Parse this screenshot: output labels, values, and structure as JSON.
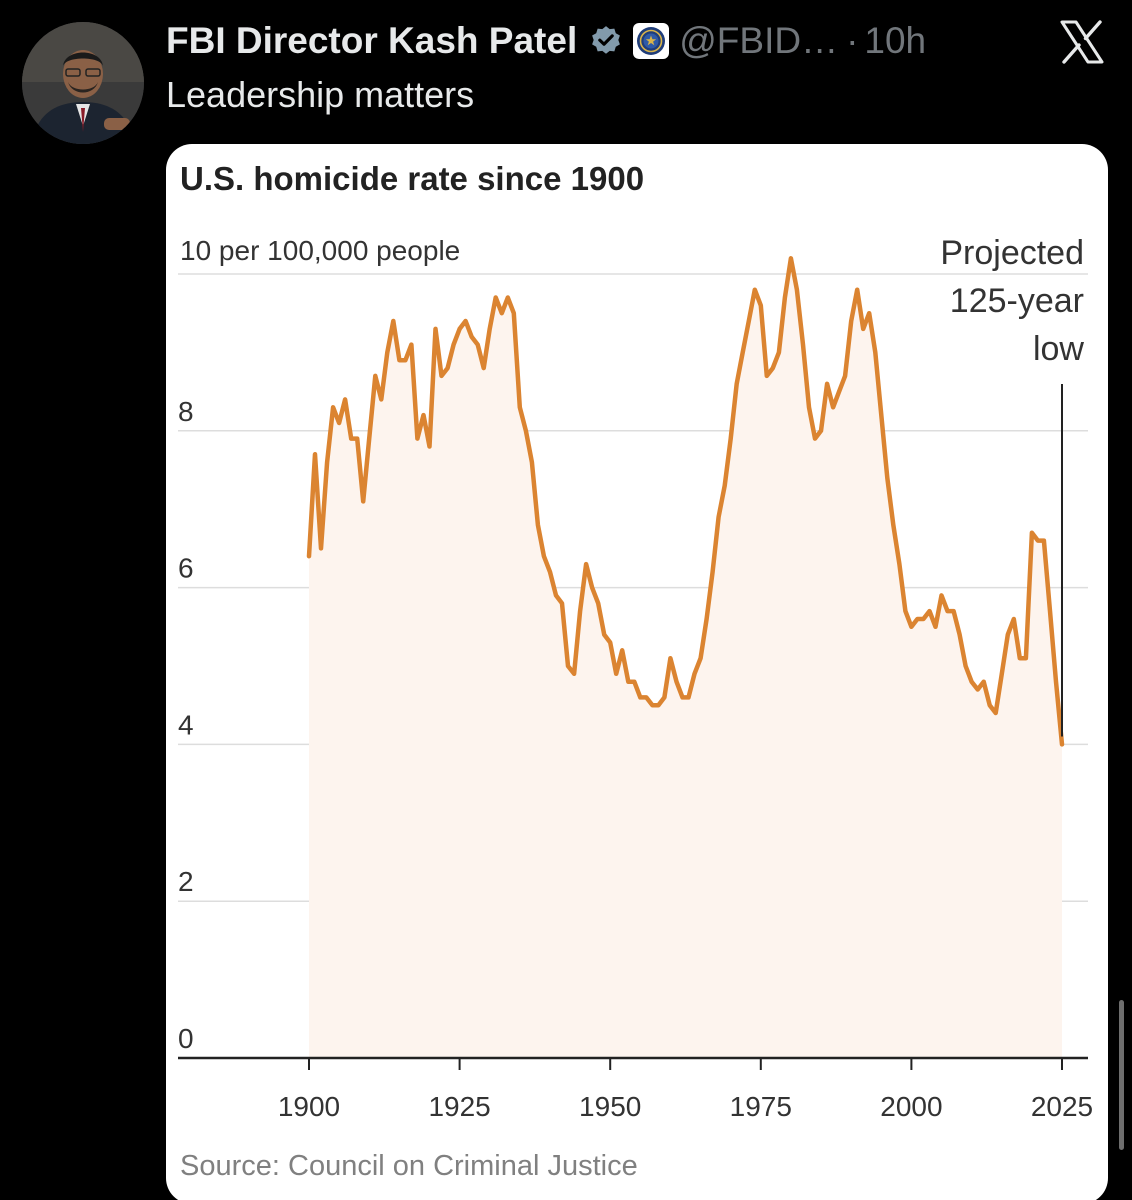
{
  "post": {
    "display_name": "FBI Director Kash Patel",
    "handle": "@FBID…",
    "separator": "·",
    "time": "10h",
    "text": "Leadership matters",
    "icons": {
      "avatar": "profile-photo",
      "verified": "verified-badge-icon",
      "affiliate": "fbi-seal-icon",
      "platform": "x-logo-icon"
    },
    "colors": {
      "background": "#000000",
      "verified_badge": "#829aab",
      "muted_text": "#71767b"
    }
  },
  "chart_data": {
    "type": "area",
    "title": "U.S. homicide rate since 1900",
    "unit_label": "10 per 100,000 people",
    "xlabel": "",
    "ylabel": "",
    "x_ticks": [
      "1900",
      "1925",
      "1950",
      "1975",
      "2000",
      "2025"
    ],
    "x_tick_values": [
      1900,
      1925,
      1950,
      1975,
      2000,
      2025
    ],
    "y_ticks": [
      "8",
      "6",
      "4",
      "2",
      "0"
    ],
    "y_tick_values": [
      8,
      6,
      4,
      2,
      0
    ],
    "xlim": [
      1900,
      2025
    ],
    "ylim": [
      0,
      10
    ],
    "grid": true,
    "annotation": [
      "Projected",
      "125-year",
      "low"
    ],
    "annotation_year": 2025,
    "source": "Source: Council on Criminal Justice",
    "colors": {
      "line": "#db8431",
      "fill": "#fdf4ee",
      "grid": "#dddddd",
      "axis": "#222222"
    },
    "series": [
      {
        "name": "",
        "x": [
          1900,
          1901,
          1902,
          1903,
          1904,
          1905,
          1906,
          1907,
          1908,
          1909,
          1910,
          1911,
          1912,
          1913,
          1914,
          1915,
          1916,
          1917,
          1918,
          1919,
          1920,
          1921,
          1922,
          1923,
          1924,
          1925,
          1926,
          1927,
          1928,
          1929,
          1930,
          1931,
          1932,
          1933,
          1934,
          1935,
          1936,
          1937,
          1938,
          1939,
          1940,
          1941,
          1942,
          1943,
          1944,
          1945,
          1946,
          1947,
          1948,
          1949,
          1950,
          1951,
          1952,
          1953,
          1954,
          1955,
          1956,
          1957,
          1958,
          1959,
          1960,
          1961,
          1962,
          1963,
          1964,
          1965,
          1966,
          1967,
          1968,
          1969,
          1970,
          1971,
          1972,
          1973,
          1974,
          1975,
          1976,
          1977,
          1978,
          1979,
          1980,
          1981,
          1982,
          1983,
          1984,
          1985,
          1986,
          1987,
          1988,
          1989,
          1990,
          1991,
          1992,
          1993,
          1994,
          1995,
          1996,
          1997,
          1998,
          1999,
          2000,
          2001,
          2002,
          2003,
          2004,
          2005,
          2006,
          2007,
          2008,
          2009,
          2010,
          2011,
          2012,
          2013,
          2014,
          2015,
          2016,
          2017,
          2018,
          2019,
          2020,
          2021,
          2022,
          2023,
          2024,
          2025
        ],
        "y": [
          6.4,
          7.7,
          6.5,
          7.6,
          8.3,
          8.1,
          8.4,
          7.9,
          7.9,
          7.1,
          7.9,
          8.7,
          8.4,
          9.0,
          9.4,
          8.9,
          8.9,
          9.1,
          7.9,
          8.2,
          7.8,
          9.3,
          8.7,
          8.8,
          9.1,
          9.3,
          9.4,
          9.2,
          9.1,
          8.8,
          9.3,
          9.7,
          9.5,
          9.7,
          9.5,
          8.3,
          8.0,
          7.6,
          6.8,
          6.4,
          6.2,
          5.9,
          5.8,
          5.0,
          4.9,
          5.7,
          6.3,
          6.0,
          5.8,
          5.4,
          5.3,
          4.9,
          5.2,
          4.8,
          4.8,
          4.6,
          4.6,
          4.5,
          4.5,
          4.6,
          5.1,
          4.8,
          4.6,
          4.6,
          4.9,
          5.1,
          5.6,
          6.2,
          6.9,
          7.3,
          7.9,
          8.6,
          9.0,
          9.4,
          9.8,
          9.6,
          8.7,
          8.8,
          9.0,
          9.7,
          10.2,
          9.8,
          9.1,
          8.3,
          7.9,
          8.0,
          8.6,
          8.3,
          8.5,
          8.7,
          9.4,
          9.8,
          9.3,
          9.5,
          9.0,
          8.2,
          7.4,
          6.8,
          6.3,
          5.7,
          5.5,
          5.6,
          5.6,
          5.7,
          5.5,
          5.9,
          5.7,
          5.7,
          5.4,
          5.0,
          4.8,
          4.7,
          4.8,
          4.5,
          4.4,
          4.9,
          5.4,
          5.6,
          5.1,
          5.1,
          6.7,
          6.6,
          6.6,
          5.7,
          4.8,
          4.0
        ]
      }
    ]
  }
}
